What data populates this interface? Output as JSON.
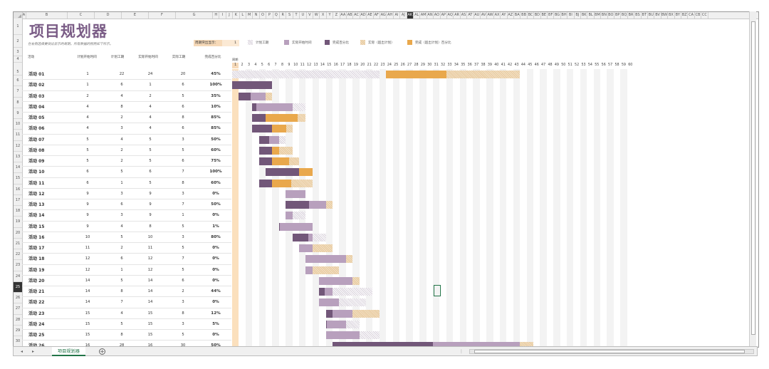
{
  "title": "项目规划器",
  "subtitle": "在右侧选择要突出显示的周期。所有数据的图例如下所示。",
  "highlight": {
    "label": "周期突出显示：",
    "value": "1"
  },
  "legend": [
    {
      "label": "计划工期",
      "style": "plan"
    },
    {
      "label": "实际开始时间",
      "style": "actual"
    },
    {
      "label": "完成百分比",
      "style": "done"
    },
    {
      "label": "实际（超出计划）",
      "style": "over"
    },
    {
      "label": "完成（超出计划）百分比",
      "style": "overdone"
    }
  ],
  "headers": {
    "activity": "活动",
    "plan_start": "计划开始时间",
    "plan_duration": "计划工期",
    "actual_start": "实际开始时间",
    "actual_duration": "实际工期",
    "pct": "完成百分比",
    "period": "周期"
  },
  "column_letters": [
    "A",
    "B",
    "C",
    "D",
    "E",
    "F",
    "G",
    "H",
    "I",
    "J",
    "K",
    "L",
    "M",
    "N",
    "O",
    "P",
    "Q",
    "R",
    "S",
    "T",
    "U",
    "V",
    "W",
    "X",
    "Y",
    "Z",
    "AA",
    "AB",
    "AC",
    "AD",
    "AE",
    "AF",
    "AG",
    "AH",
    "AI",
    "AJ",
    "AK",
    "AL",
    "AM",
    "AN",
    "AO",
    "AP",
    "AQ",
    "AR",
    "AS",
    "AT",
    "AU",
    "AV",
    "AW",
    "AX",
    "AY",
    "AZ",
    "BA",
    "BB",
    "BC",
    "BD",
    "BE",
    "BF",
    "BG",
    "BH",
    "BI",
    "BJ",
    "BK",
    "BL",
    "BM",
    "BN",
    "BO",
    "BP",
    "BQ",
    "BR",
    "BS",
    "BT",
    "BU",
    "BV",
    "BW",
    "BX",
    "BY",
    "BZ",
    "CA",
    "CB",
    "CC"
  ],
  "selected_column": "AK",
  "period_count": 60,
  "highlighted_period": 1,
  "rows": [
    {
      "name": "活动 01",
      "ps": 1,
      "pd": 22,
      "as": 24,
      "ad": 20,
      "pct": "45%"
    },
    {
      "name": "活动 02",
      "ps": 1,
      "pd": 6,
      "as": 1,
      "ad": 6,
      "pct": "100%"
    },
    {
      "name": "活动 03",
      "ps": 2,
      "pd": 4,
      "as": 2,
      "ad": 5,
      "pct": "35%"
    },
    {
      "name": "活动 04",
      "ps": 4,
      "pd": 8,
      "as": 4,
      "ad": 6,
      "pct": "10%"
    },
    {
      "name": "活动 05",
      "ps": 4,
      "pd": 2,
      "as": 4,
      "ad": 8,
      "pct": "85%"
    },
    {
      "name": "活动 06",
      "ps": 4,
      "pd": 3,
      "as": 4,
      "ad": 6,
      "pct": "85%"
    },
    {
      "name": "活动 07",
      "ps": 5,
      "pd": 4,
      "as": 5,
      "ad": 3,
      "pct": "50%"
    },
    {
      "name": "活动 08",
      "ps": 5,
      "pd": 2,
      "as": 5,
      "ad": 5,
      "pct": "60%"
    },
    {
      "name": "活动 09",
      "ps": 5,
      "pd": 2,
      "as": 5,
      "ad": 6,
      "pct": "75%"
    },
    {
      "name": "活动 10",
      "ps": 6,
      "pd": 5,
      "as": 6,
      "ad": 7,
      "pct": "100%"
    },
    {
      "name": "活动 11",
      "ps": 6,
      "pd": 1,
      "as": 5,
      "ad": 8,
      "pct": "60%"
    },
    {
      "name": "活动 12",
      "ps": 9,
      "pd": 3,
      "as": 9,
      "ad": 3,
      "pct": "0%"
    },
    {
      "name": "活动 13",
      "ps": 9,
      "pd": 6,
      "as": 9,
      "ad": 7,
      "pct": "50%"
    },
    {
      "name": "活动 14",
      "ps": 9,
      "pd": 3,
      "as": 9,
      "ad": 1,
      "pct": "0%"
    },
    {
      "name": "活动 15",
      "ps": 9,
      "pd": 4,
      "as": 8,
      "ad": 5,
      "pct": "1%"
    },
    {
      "name": "活动 16",
      "ps": 10,
      "pd": 5,
      "as": 10,
      "ad": 3,
      "pct": "80%"
    },
    {
      "name": "活动 17",
      "ps": 11,
      "pd": 2,
      "as": 11,
      "ad": 5,
      "pct": "0%"
    },
    {
      "name": "活动 18",
      "ps": 12,
      "pd": 6,
      "as": 12,
      "ad": 7,
      "pct": "0%"
    },
    {
      "name": "活动 19",
      "ps": 12,
      "pd": 1,
      "as": 12,
      "ad": 5,
      "pct": "0%"
    },
    {
      "name": "活动 20",
      "ps": 14,
      "pd": 5,
      "as": 14,
      "ad": 6,
      "pct": "0%"
    },
    {
      "name": "活动 21",
      "ps": 14,
      "pd": 8,
      "as": 14,
      "ad": 2,
      "pct": "44%"
    },
    {
      "name": "活动 22",
      "ps": 14,
      "pd": 7,
      "as": 14,
      "ad": 3,
      "pct": "0%"
    },
    {
      "name": "活动 23",
      "ps": 15,
      "pd": 4,
      "as": 15,
      "ad": 8,
      "pct": "12%"
    },
    {
      "name": "活动 24",
      "ps": 15,
      "pd": 5,
      "as": 15,
      "ad": 3,
      "pct": "5%"
    },
    {
      "name": "活动 25",
      "ps": 15,
      "pd": 8,
      "as": 15,
      "ad": 5,
      "pct": "0%"
    },
    {
      "name": "活动 26",
      "ps": 16,
      "pd": 28,
      "as": 16,
      "ad": 30,
      "pct": "50%"
    }
  ],
  "sheet_tab": "项目规划器",
  "row_numbers": [
    "1",
    "2",
    "3",
    "4",
    "5",
    "6",
    "7",
    "8",
    "9",
    "10",
    "11",
    "12",
    "13",
    "14",
    "15",
    "16",
    "17",
    "18",
    "19",
    "20",
    "21",
    "22",
    "23",
    "24",
    "25",
    "26",
    "27",
    "28",
    "29",
    "30"
  ],
  "selected_row": "25",
  "colors": {
    "title": "#7a5c86",
    "plan": "#d7d0da",
    "actual": "#b8a0bd",
    "done": "#725779",
    "over": "#e6c89b",
    "overdone": "#e9a84c",
    "accent": "#227447"
  }
}
